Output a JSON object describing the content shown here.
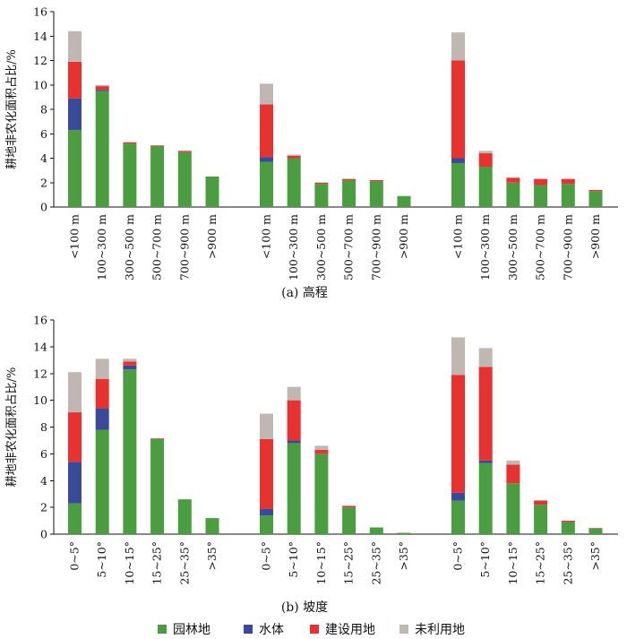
{
  "colors": {
    "园林地": "#4a9e3f",
    "水体": "#3a4a9a",
    "建设用地": "#e8322f",
    "未利用地": "#c0b7b2"
  },
  "legend": [
    "园林地",
    "水体",
    "建设用地",
    "未利用地"
  ],
  "chart_data": [
    {
      "type": "bar",
      "stacked": true,
      "caption": "(a) 高程",
      "ylabel": "耕地非农化面积占比/%",
      "ylim": [
        0,
        16
      ],
      "yticks": [
        0,
        2,
        4,
        6,
        8,
        10,
        12,
        14,
        16
      ],
      "categories": [
        "<100 m",
        "100~300 m",
        "300~500 m",
        "500~700 m",
        "700~900 m",
        ">900 m"
      ],
      "groups": [
        {
          "series": [
            {
              "name": "园林地",
              "values": [
                6.3,
                9.5,
                5.2,
                5.0,
                4.5,
                2.5
              ]
            },
            {
              "name": "水体",
              "values": [
                2.6,
                0.1,
                0.0,
                0.0,
                0.0,
                0.0
              ]
            },
            {
              "name": "建设用地",
              "values": [
                3.0,
                0.3,
                0.1,
                0.05,
                0.1,
                0.0
              ]
            },
            {
              "name": "未利用地",
              "values": [
                2.5,
                0.1,
                0.0,
                0.0,
                0.0,
                0.0
              ]
            }
          ]
        },
        {
          "series": [
            {
              "name": "园林地",
              "values": [
                3.7,
                4.0,
                1.9,
                2.2,
                2.1,
                0.9
              ]
            },
            {
              "name": "水体",
              "values": [
                0.4,
                0.0,
                0.0,
                0.0,
                0.0,
                0.0
              ]
            },
            {
              "name": "建设用地",
              "values": [
                4.3,
                0.2,
                0.1,
                0.1,
                0.1,
                0.0
              ]
            },
            {
              "name": "未利用地",
              "values": [
                1.7,
                0.1,
                0.0,
                0.0,
                0.0,
                0.0
              ]
            }
          ]
        },
        {
          "series": [
            {
              "name": "园林地",
              "values": [
                3.6,
                3.3,
                2.0,
                1.8,
                1.9,
                1.3
              ]
            },
            {
              "name": "水体",
              "values": [
                0.4,
                0.0,
                0.0,
                0.0,
                0.0,
                0.0
              ]
            },
            {
              "name": "建设用地",
              "values": [
                8.0,
                1.1,
                0.4,
                0.5,
                0.4,
                0.1
              ]
            },
            {
              "name": "未利用地",
              "values": [
                2.3,
                0.2,
                0.0,
                0.0,
                0.0,
                0.0
              ]
            }
          ]
        }
      ]
    },
    {
      "type": "bar",
      "stacked": true,
      "caption": "(b) 坡度",
      "ylabel": "耕地非农化面积占比/%",
      "ylim": [
        0,
        16
      ],
      "yticks": [
        0,
        2,
        4,
        6,
        8,
        10,
        12,
        14,
        16
      ],
      "categories": [
        "0~5°",
        "5~10°",
        "10~15°",
        "15~25°",
        "25~35°",
        ">35°"
      ],
      "groups": [
        {
          "series": [
            {
              "name": "园林地",
              "values": [
                2.3,
                7.8,
                12.3,
                7.1,
                2.6,
                1.2
              ]
            },
            {
              "name": "水体",
              "values": [
                3.1,
                1.6,
                0.3,
                0.0,
                0.0,
                0.0
              ]
            },
            {
              "name": "建设用地",
              "values": [
                3.7,
                2.2,
                0.3,
                0.05,
                0.0,
                0.0
              ]
            },
            {
              "name": "未利用地",
              "values": [
                3.0,
                1.5,
                0.2,
                0.0,
                0.0,
                0.0
              ]
            }
          ]
        },
        {
          "series": [
            {
              "name": "园林地",
              "values": [
                1.4,
                6.8,
                6.0,
                2.0,
                0.5,
                0.1
              ]
            },
            {
              "name": "水体",
              "values": [
                0.5,
                0.2,
                0.0,
                0.0,
                0.0,
                0.0
              ]
            },
            {
              "name": "建设用地",
              "values": [
                5.2,
                3.0,
                0.3,
                0.1,
                0.0,
                0.0
              ]
            },
            {
              "name": "未利用地",
              "values": [
                1.9,
                1.0,
                0.3,
                0.05,
                0.0,
                0.0
              ]
            }
          ]
        },
        {
          "series": [
            {
              "name": "园林地",
              "values": [
                2.5,
                5.3,
                3.8,
                2.2,
                0.9,
                0.4
              ]
            },
            {
              "name": "水体",
              "values": [
                0.6,
                0.2,
                0.0,
                0.0,
                0.0,
                0.0
              ]
            },
            {
              "name": "建设用地",
              "values": [
                8.8,
                7.0,
                1.4,
                0.3,
                0.1,
                0.05
              ]
            },
            {
              "name": "未利用地",
              "values": [
                2.8,
                1.4,
                0.3,
                0.05,
                0.0,
                0.0
              ]
            }
          ]
        }
      ]
    }
  ]
}
